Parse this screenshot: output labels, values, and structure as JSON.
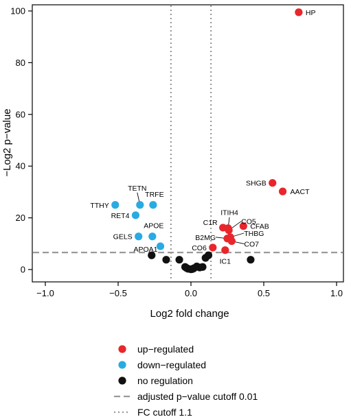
{
  "chart_data": {
    "type": "scatter",
    "title": "",
    "xlabel": "Log2 fold change",
    "ylabel": "−Log2 p−value",
    "xlim": [
      -1.0,
      1.0
    ],
    "ylim": [
      0,
      100
    ],
    "x_ticks": [
      "−1.0",
      "−0.5",
      "0.0",
      "0.5",
      "1.0"
    ],
    "y_ticks": [
      "0",
      "20",
      "40",
      "60",
      "80",
      "100"
    ],
    "grid": false,
    "legend_position": "bottom",
    "colors": {
      "up": "#e8262b",
      "down": "#29abe2",
      "none": "#111111",
      "cutoff": "#999999"
    },
    "cutoffs": {
      "pvalue_y": 6.6,
      "fc_x": [
        -0.1375,
        0.1375
      ]
    },
    "series": [
      {
        "name": "up−regulated",
        "group": "up",
        "points": [
          {
            "x": 0.74,
            "y": 99.5,
            "label": "HP"
          },
          {
            "x": 0.56,
            "y": 33.5,
            "label": "SHGB"
          },
          {
            "x": 0.63,
            "y": 30.2,
            "label": "AACT"
          },
          {
            "x": 0.22,
            "y": 16.2,
            "label": "C1R"
          },
          {
            "x": 0.255,
            "y": 16.0,
            "label": "ITIH4"
          },
          {
            "x": 0.36,
            "y": 16.8,
            "label": "CFAB"
          },
          {
            "x": 0.27,
            "y": 12.5,
            "label": "THBG"
          },
          {
            "x": 0.25,
            "y": 12.0,
            "label": "B2MG"
          },
          {
            "x": 0.28,
            "y": 11.0,
            "label": "CO7"
          },
          {
            "x": 0.15,
            "y": 8.5,
            "label": "CO6"
          },
          {
            "x": 0.235,
            "y": 7.5,
            "label": "IC1"
          },
          {
            "x": 0.26,
            "y": 15.2,
            "label": "CO5"
          }
        ]
      },
      {
        "name": "down−regulated",
        "group": "down",
        "points": [
          {
            "x": -0.52,
            "y": 25.0,
            "label": "TTHY"
          },
          {
            "x": -0.35,
            "y": 25.0,
            "label": "TETN"
          },
          {
            "x": -0.26,
            "y": 25.0,
            "label": "TRFE"
          },
          {
            "x": -0.38,
            "y": 21.0,
            "label": "RET4"
          },
          {
            "x": -0.36,
            "y": 12.8,
            "label": "GELS"
          },
          {
            "x": -0.265,
            "y": 12.8,
            "label": "APOE"
          },
          {
            "x": -0.21,
            "y": 9.0,
            "label": "APOA1"
          }
        ]
      },
      {
        "name": "no regulation",
        "group": "none",
        "points": [
          {
            "x": -0.27,
            "y": 5.5
          },
          {
            "x": -0.17,
            "y": 3.8
          },
          {
            "x": -0.08,
            "y": 3.8
          },
          {
            "x": -0.04,
            "y": 1.0
          },
          {
            "x": -0.02,
            "y": 0.3
          },
          {
            "x": 0.0,
            "y": 0.1
          },
          {
            "x": 0.02,
            "y": 0.5
          },
          {
            "x": 0.04,
            "y": 1.2
          },
          {
            "x": 0.06,
            "y": 0.8
          },
          {
            "x": 0.08,
            "y": 1.0
          },
          {
            "x": 0.1,
            "y": 4.5
          },
          {
            "x": 0.12,
            "y": 5.5
          },
          {
            "x": 0.41,
            "y": 3.8
          },
          {
            "x": -0.03,
            "y": 0.6
          },
          {
            "x": 0.01,
            "y": 0.2
          }
        ]
      }
    ],
    "legend": [
      {
        "label": "up−regulated",
        "kind": "dot",
        "group": "up"
      },
      {
        "label": "down−regulated",
        "kind": "dot",
        "group": "down"
      },
      {
        "label": "no regulation",
        "kind": "dot",
        "group": "none"
      },
      {
        "label": "adjusted p−value cutoff 0.01",
        "kind": "dash"
      },
      {
        "label": "FC cutoff 1.1",
        "kind": "dot-line"
      }
    ]
  }
}
